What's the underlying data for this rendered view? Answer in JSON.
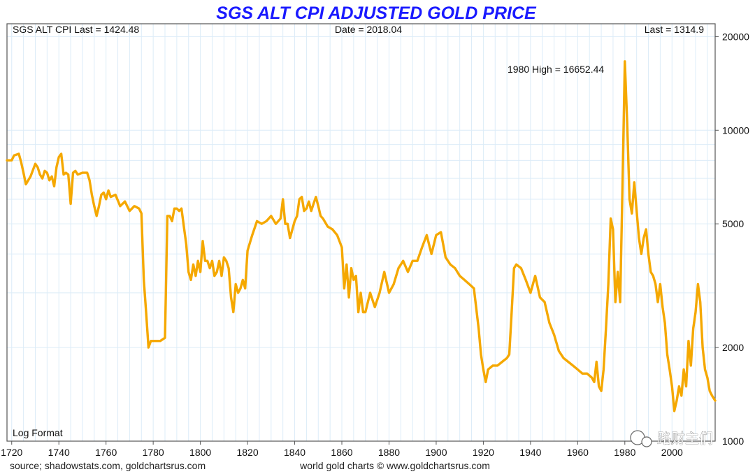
{
  "header": {
    "title": "SGS ALT CPI ADJUSTED GOLD PRICE",
    "left_info": "SGS ALT CPI Last = 1424.48",
    "center_info": "Date = 2018.04",
    "right_info": "Last = 1314.9"
  },
  "annotation": "1980 High = 16652.44",
  "scale_note": "Log Format",
  "footer": {
    "source": "source; shadowstats.com, goldchartsrus.com",
    "credit": "world gold charts © www.goldchartsrus.com"
  },
  "watermark": "路财主们",
  "colors": {
    "line": "#f5a800",
    "grid": "#dcecf8",
    "title": "#1a1aff",
    "frame": "#555555"
  },
  "chart_data": {
    "type": "line",
    "title": "SGS ALT CPI ADJUSTED GOLD PRICE",
    "yscale": "log",
    "xlim": [
      1718,
      2018.3
    ],
    "ylim": [
      1000,
      22000
    ],
    "grid": true,
    "x_ticks": [
      "1720",
      "1740",
      "1760",
      "1780",
      "1800",
      "1820",
      "1840",
      "1860",
      "1880",
      "1900",
      "1920",
      "1940",
      "1960",
      "1980",
      "2000"
    ],
    "y_ticks": [
      {
        "value": 2000,
        "label": "2000"
      },
      {
        "value": 5000,
        "label": "5000"
      },
      {
        "value": 10000,
        "label": "10000"
      },
      {
        "value": 20000,
        "label": "20000"
      }
    ],
    "series": [
      {
        "x": [
          1718,
          1720,
          1721,
          1723,
          1724,
          1725,
          1726,
          1727,
          1728,
          1730,
          1731,
          1732,
          1733,
          1734,
          1735,
          1736,
          1737,
          1738,
          1739,
          1740,
          1741,
          1742,
          1743,
          1744,
          1745,
          1746,
          1747,
          1748,
          1750,
          1752,
          1753,
          1754,
          1755,
          1756,
          1757,
          1758,
          1759,
          1760,
          1761,
          1762,
          1764,
          1766,
          1768,
          1770,
          1772,
          1774,
          1775,
          1776,
          1777,
          1778,
          1779,
          1780,
          1781,
          1783,
          1785,
          1786,
          1787,
          1788,
          1789,
          1790,
          1791,
          1792,
          1793,
          1794,
          1795,
          1796,
          1797,
          1798,
          1799,
          1800,
          1801,
          1802,
          1803,
          1804,
          1805,
          1806,
          1807,
          1808,
          1809,
          1810,
          1811,
          1812,
          1813,
          1814,
          1815,
          1816,
          1817,
          1818,
          1819,
          1820,
          1822,
          1824,
          1826,
          1828,
          1830,
          1832,
          1834,
          1835,
          1836,
          1837,
          1838,
          1840,
          1841,
          1842,
          1843,
          1844,
          1845,
          1846,
          1847,
          1848,
          1849,
          1850,
          1851,
          1852,
          1854,
          1856,
          1858,
          1860,
          1861,
          1862,
          1863,
          1864,
          1865,
          1866,
          1867,
          1868,
          1869,
          1870,
          1872,
          1874,
          1876,
          1878,
          1880,
          1882,
          1884,
          1886,
          1888,
          1890,
          1892,
          1894,
          1896,
          1898,
          1900,
          1902,
          1904,
          1906,
          1908,
          1910,
          1912,
          1914,
          1916,
          1918,
          1919,
          1920,
          1921,
          1922,
          1924,
          1926,
          1928,
          1930,
          1931,
          1932,
          1933,
          1934,
          1936,
          1938,
          1940,
          1942,
          1944,
          1946,
          1948,
          1950,
          1952,
          1954,
          1956,
          1958,
          1960,
          1962,
          1964,
          1966,
          1967,
          1968,
          1969,
          1970,
          1971,
          1972,
          1973,
          1974,
          1975,
          1976,
          1977,
          1978,
          1979,
          1980,
          1981,
          1982,
          1983,
          1984,
          1985,
          1986,
          1987,
          1988,
          1989,
          1990,
          1991,
          1992,
          1993,
          1994,
          1995,
          1996,
          1997,
          1998,
          1999,
          2000,
          2001,
          2002,
          2003,
          2004,
          2005,
          2006,
          2007,
          2008,
          2009,
          2010,
          2011,
          2012,
          2013,
          2014,
          2015,
          2016,
          2017,
          2018.3
        ],
        "y": [
          8000,
          8000,
          8300,
          8400,
          7900,
          7300,
          6700,
          6900,
          7100,
          7800,
          7600,
          7200,
          7000,
          7400,
          7300,
          6900,
          7100,
          6600,
          7600,
          8200,
          8400,
          7200,
          7300,
          7200,
          5800,
          7300,
          7400,
          7200,
          7300,
          7300,
          6900,
          6200,
          5700,
          5300,
          5700,
          6200,
          6300,
          6000,
          6400,
          6100,
          6200,
          5700,
          5900,
          5500,
          5700,
          5600,
          5400,
          3300,
          2600,
          2000,
          2100,
          2100,
          2100,
          2100,
          2150,
          5300,
          5300,
          5100,
          5600,
          5600,
          5500,
          5600,
          4900,
          4300,
          3500,
          3300,
          3700,
          3400,
          3800,
          3500,
          4400,
          3800,
          3800,
          3600,
          3800,
          3400,
          3500,
          3800,
          3400,
          3900,
          3800,
          3600,
          2900,
          2600,
          3200,
          3000,
          3100,
          3300,
          3100,
          4100,
          4600,
          5100,
          5000,
          5100,
          5300,
          5000,
          5200,
          6000,
          5000,
          5000,
          4500,
          5100,
          5300,
          6000,
          6100,
          5500,
          5600,
          5900,
          5500,
          5800,
          6100,
          5700,
          5300,
          5200,
          4900,
          4800,
          4600,
          4200,
          3100,
          3700,
          2900,
          3600,
          3300,
          3400,
          2600,
          3000,
          2600,
          2600,
          3000,
          2700,
          3000,
          3500,
          3000,
          3200,
          3600,
          3800,
          3500,
          3800,
          3800,
          4200,
          4600,
          4000,
          4600,
          4700,
          3900,
          3700,
          3600,
          3400,
          3300,
          3200,
          3100,
          2300,
          1900,
          1700,
          1550,
          1700,
          1750,
          1750,
          1800,
          1850,
          1900,
          2600,
          3600,
          3700,
          3600,
          3300,
          3000,
          3400,
          2900,
          2800,
          2400,
          2200,
          1950,
          1850,
          1800,
          1750,
          1700,
          1650,
          1650,
          1600,
          1550,
          1800,
          1500,
          1450,
          1700,
          2300,
          3200,
          5200,
          4800,
          2800,
          3500,
          2800,
          6500,
          16652,
          10500,
          6000,
          5400,
          6800,
          5500,
          4500,
          4000,
          4500,
          4800,
          4000,
          3500,
          3400,
          3200,
          2800,
          3200,
          2700,
          2400,
          1900,
          1700,
          1500,
          1250,
          1350,
          1500,
          1400,
          1700,
          1500,
          2100,
          1750,
          2300,
          2600,
          3200,
          2800,
          2000,
          1700,
          1600,
          1450,
          1400,
          1350
        ]
      }
    ]
  }
}
